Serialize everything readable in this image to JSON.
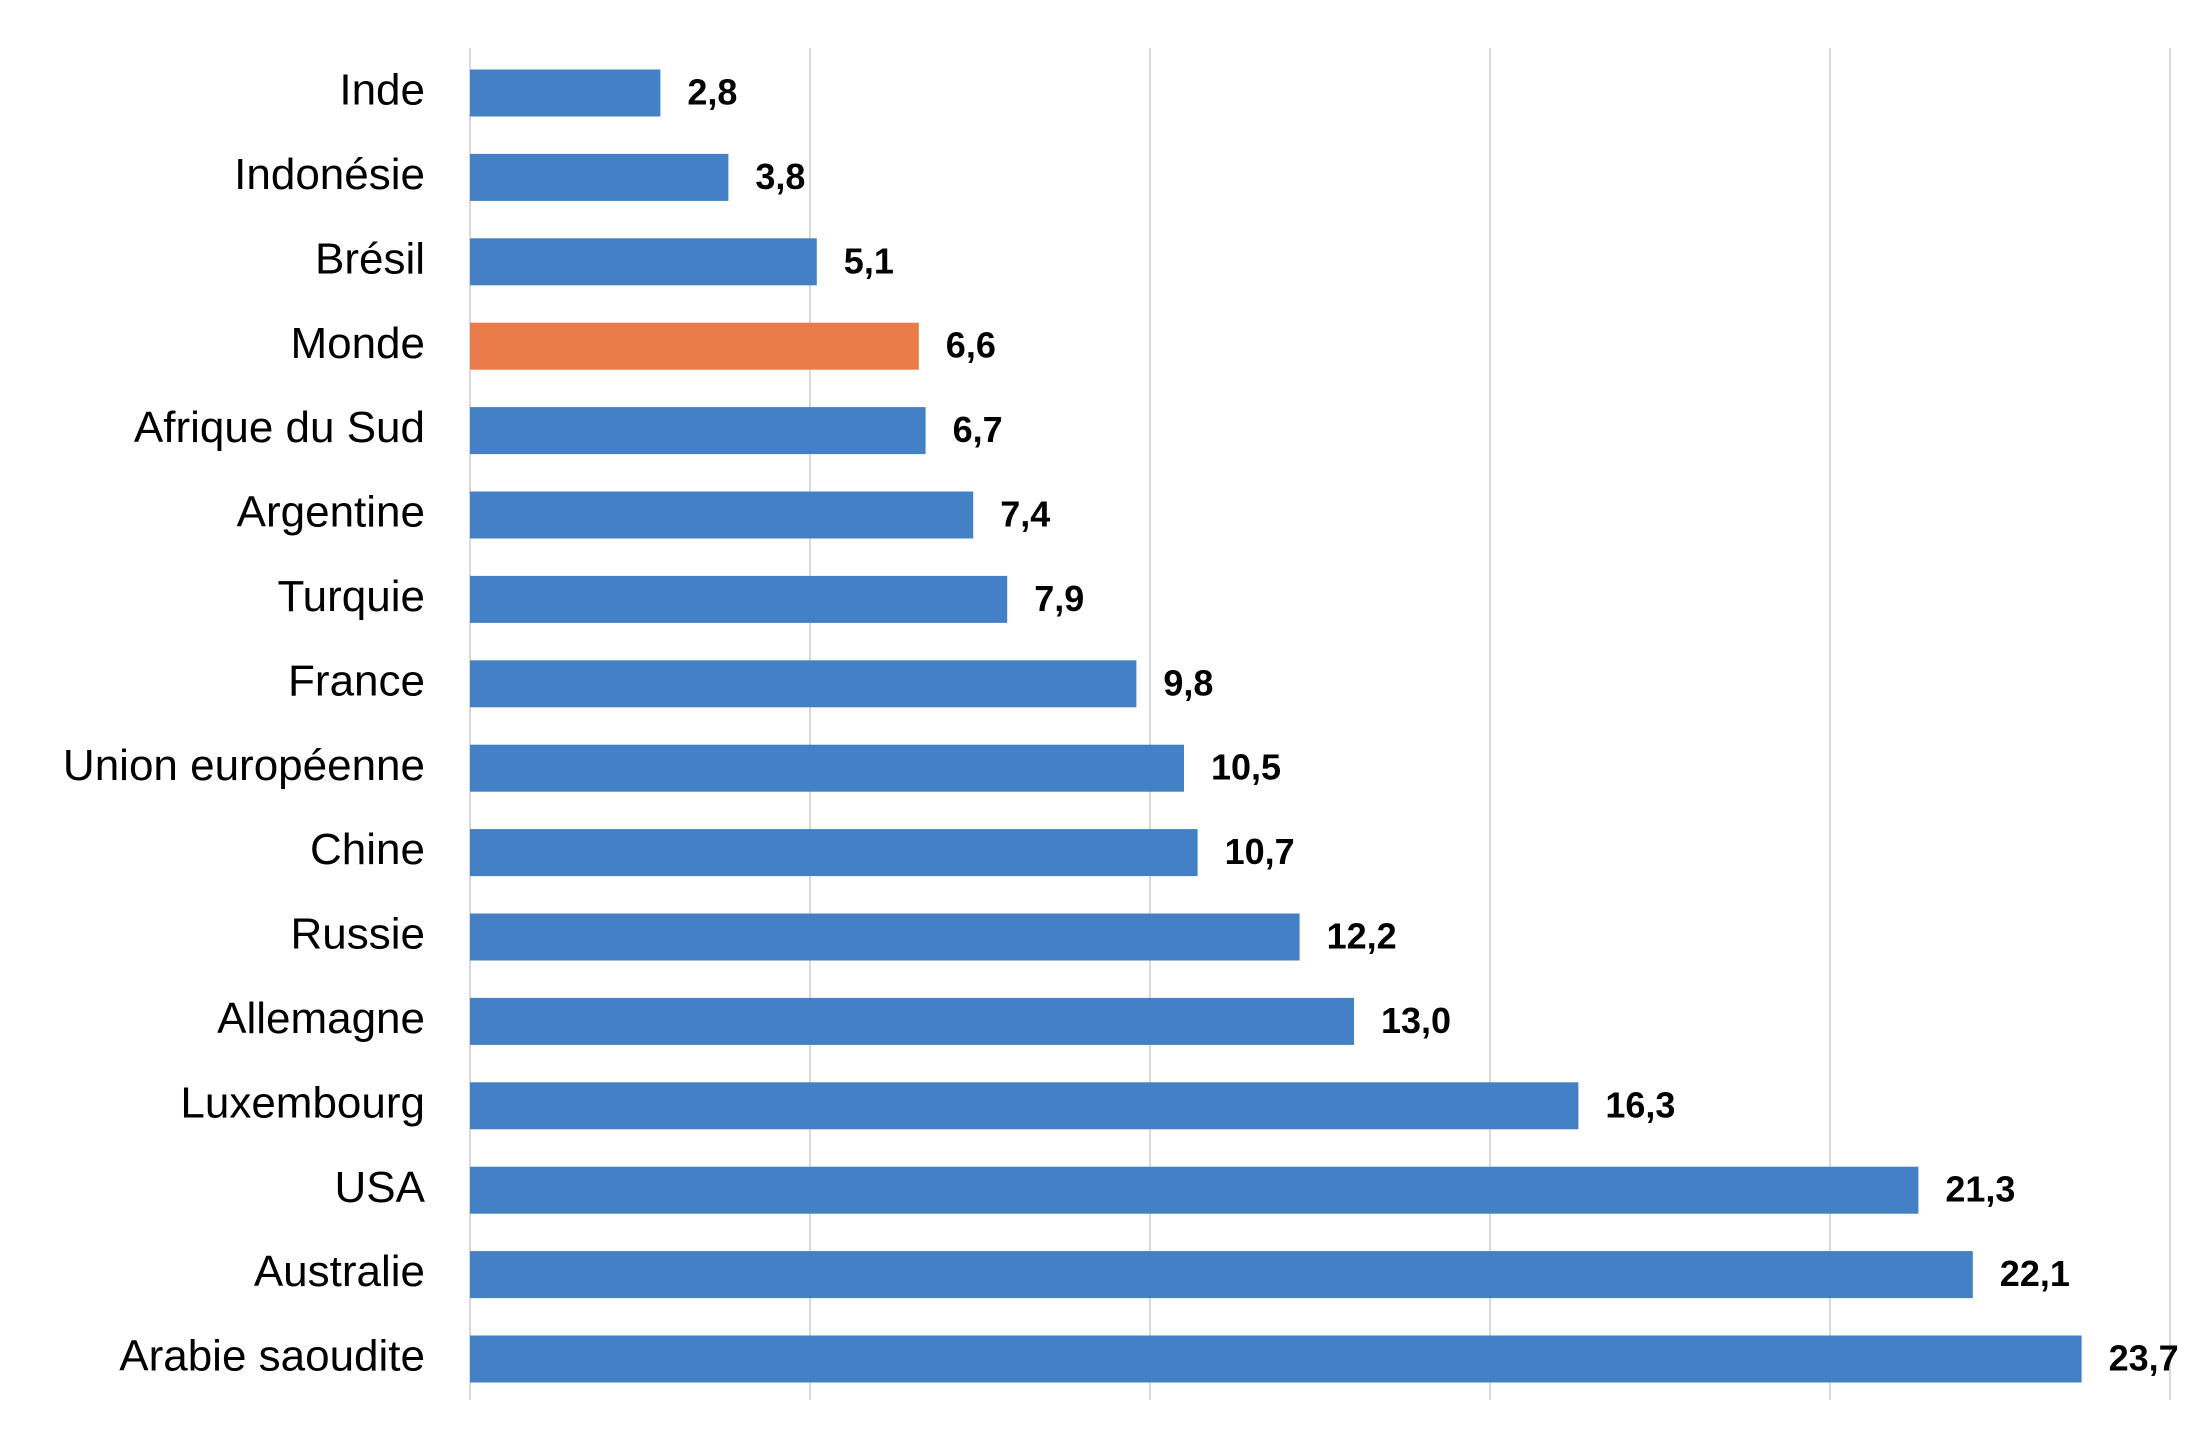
{
  "chart_data": {
    "type": "bar",
    "orientation": "horizontal",
    "categories": [
      "Inde",
      "Indonésie",
      "Brésil",
      "Monde",
      "Afrique du Sud",
      "Argentine",
      "Turquie",
      "France",
      "Union européenne",
      "Chine",
      "Russie",
      "Allemagne",
      "Luxembourg",
      "USA",
      "Australie",
      "Arabie saoudite"
    ],
    "values": [
      2.8,
      3.8,
      5.1,
      6.6,
      6.7,
      7.4,
      7.9,
      9.8,
      10.5,
      10.7,
      12.2,
      13.0,
      16.3,
      21.3,
      22.1,
      23.7
    ],
    "value_labels": [
      "2,8",
      "3,8",
      "5,1",
      "6,6",
      "6,7",
      "7,4",
      "7,9",
      "9,8",
      "10,5",
      "10,7",
      "12,2",
      "13,0",
      "16,3",
      "21,3",
      "22,1",
      "23,7"
    ],
    "highlight_category": "Monde",
    "title": "",
    "xlabel": "",
    "ylabel": "",
    "xlim": [
      0,
      25
    ],
    "grid": true,
    "legend": "none",
    "colors": {
      "bar": "#4380c5",
      "highlight": "#e97b49",
      "grid": "#d9d9d9",
      "text": "#000000"
    }
  }
}
